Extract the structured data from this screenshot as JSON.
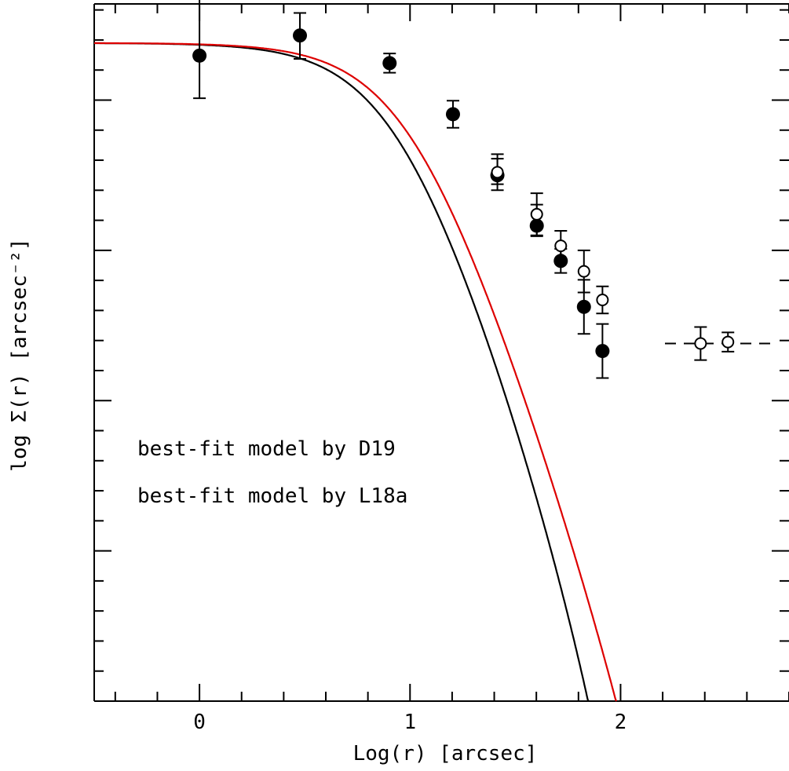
{
  "chart_data": {
    "type": "scatter",
    "xlabel": "Log(r) [arcsec]",
    "ylabel": "log Σ(r) [arcsec⁻²]",
    "xlim": [
      -0.5,
      2.8
    ],
    "xticks": [
      0,
      1,
      2
    ],
    "xtick_labels": [
      "0",
      "1",
      "2"
    ],
    "grid": false,
    "series": [
      {
        "name": "",
        "marker": "filled-circle",
        "color": "#000000",
        "points": [
          {
            "x": 0.0,
            "y": 0.148,
            "err_lo": 0.142,
            "err_hi": 0.29
          },
          {
            "x": 0.477,
            "y": 0.215,
            "err_lo": 0.078,
            "err_hi": 0.075
          },
          {
            "x": 0.903,
            "y": 0.123,
            "err_lo": 0.032,
            "err_hi": 0.032
          },
          {
            "x": 1.204,
            "y": -0.047,
            "err_lo": 0.045,
            "err_hi": 0.045
          },
          {
            "x": 1.415,
            "y": -0.25,
            "err_lo": 0.03,
            "err_hi": 0.055
          },
          {
            "x": 1.602,
            "y": -0.418,
            "err_lo": 0.035,
            "err_hi": 0.07
          },
          {
            "x": 1.716,
            "y": -0.535,
            "err_lo": 0.04,
            "err_hi": 0.04
          },
          {
            "x": 1.826,
            "y": -0.688,
            "err_lo": 0.09,
            "err_hi": 0.09
          },
          {
            "x": 1.914,
            "y": -0.835,
            "err_lo": 0.09,
            "err_hi": 0.09
          }
        ]
      },
      {
        "name": "",
        "marker": "open-circle",
        "color": "#000000",
        "points": [
          {
            "x": 1.415,
            "y": -0.24,
            "err_lo": 0.06,
            "err_hi": 0.06
          },
          {
            "x": 1.602,
            "y": -0.38,
            "err_lo": 0.07,
            "err_hi": 0.07
          },
          {
            "x": 1.716,
            "y": -0.485,
            "err_lo": 0.05,
            "err_hi": 0.05
          },
          {
            "x": 1.826,
            "y": -0.57,
            "err_lo": 0.07,
            "err_hi": 0.07
          },
          {
            "x": 1.914,
            "y": -0.665,
            "err_lo": 0.045,
            "err_hi": 0.045
          },
          {
            "x": 2.38,
            "y": -0.81,
            "err_lo": 0.055,
            "err_hi": 0.055
          },
          {
            "x": 2.51,
            "y": -0.805,
            "err_lo": 0.032,
            "err_hi": 0.032
          }
        ],
        "background_level": -0.81
      }
    ],
    "models": [
      {
        "name": "best-fit model by D19",
        "color": "#000000",
        "sigma0": 0.19,
        "rc": 0.94,
        "rt": 2.27
      },
      {
        "name": "best-fit model by L18a",
        "color": "#dd0000",
        "sigma0": 0.19,
        "rc": 1.0,
        "rt": 2.58
      }
    ],
    "annotations": [
      {
        "text": "best-fit model by D19",
        "color": "#000000"
      },
      {
        "text": "best-fit model by L18a",
        "color": "#dd0000"
      }
    ]
  }
}
